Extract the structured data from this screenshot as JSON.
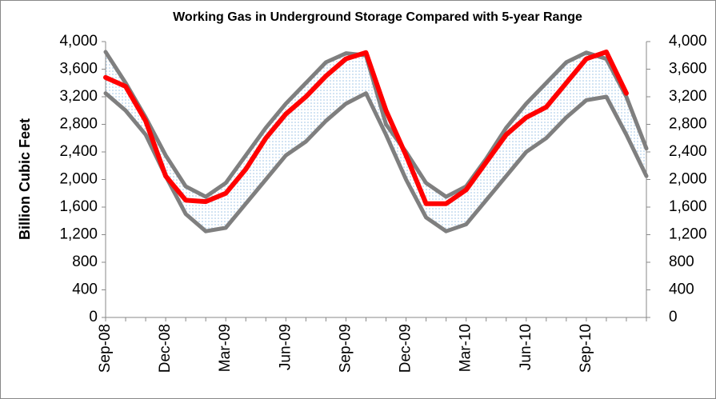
{
  "chart_data": {
    "type": "line",
    "title": "Working Gas in Underground  Storage Compared with 5-year Range",
    "y_label": "Billion Cubic Feet",
    "categories": [
      "Sep-08",
      null,
      null,
      "Dec-08",
      null,
      null,
      "Mar-09",
      null,
      null,
      "Jun-09",
      null,
      null,
      "Sep-09",
      null,
      null,
      "Dec-09",
      null,
      null,
      "Mar-10",
      null,
      null,
      "Jun-10",
      null,
      null,
      "Sep-10",
      null,
      null,
      null
    ],
    "series": [
      {
        "color": "#7f7f7f",
        "values": [
          3850,
          3400,
          2900,
          2350,
          1900,
          1750,
          1950,
          2350,
          2750,
          3100,
          3400,
          3700,
          3830,
          3800,
          2800,
          2400,
          1950,
          1750,
          1900,
          2300,
          2750,
          3100,
          3400,
          3700,
          3840,
          3750,
          3200,
          2450
        ]
      },
      {
        "color": "#7f7f7f",
        "values": [
          3250,
          3000,
          2650,
          2050,
          1500,
          1250,
          1300,
          1650,
          2000,
          2350,
          2550,
          2850,
          3100,
          3250,
          2650,
          2000,
          1450,
          1250,
          1350,
          1700,
          2050,
          2400,
          2600,
          2900,
          3150,
          3200,
          2650,
          2050
        ]
      },
      {
        "color": "#ff0000",
        "values": [
          3480,
          3350,
          2850,
          2050,
          1700,
          1680,
          1800,
          2150,
          2600,
          2950,
          3200,
          3500,
          3750,
          3840,
          3000,
          2350,
          1650,
          1650,
          1850,
          2250,
          2650,
          2900,
          3050,
          3400,
          3750,
          3850,
          3250,
          null
        ]
      }
    ],
    "ylim": [
      0,
      4000
    ],
    "yticks": [
      0,
      400,
      800,
      {
        "value": 1200,
        "label": "1,200"
      },
      {
        "value": 1600,
        "label": "1,600"
      },
      {
        "value": 2000,
        "label": "2,000"
      },
      {
        "value": 2400,
        "label": "2,400"
      },
      {
        "value": 2800,
        "label": "2,800"
      },
      {
        "value": 3200,
        "label": "3,200"
      },
      {
        "value": 3600,
        "label": "3,600"
      },
      {
        "value": 4000,
        "label": "4,000"
      }
    ],
    "y2lim": [
      0,
      4000
    ],
    "y2ticks": [
      0,
      400,
      800,
      {
        "value": 1200,
        "label": "1,200"
      },
      {
        "value": 1600,
        "label": "1,600"
      },
      {
        "value": 2000,
        "label": "2,000"
      },
      {
        "value": 2400,
        "label": "2,400"
      },
      {
        "value": 2800,
        "label": "2,800"
      },
      {
        "value": 3200,
        "label": "3,200"
      },
      {
        "value": 3600,
        "label": "3,600"
      },
      {
        "value": 4000,
        "label": "4,000"
      }
    ],
    "band_color": "#9dc3e6"
  }
}
